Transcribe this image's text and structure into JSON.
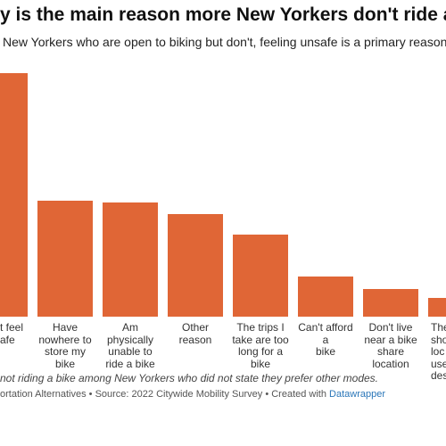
{
  "chart_data": {
    "type": "bar",
    "title": "y is the main reason more New Yorkers don't ride a b",
    "subtitle": "New Yorkers who are open to biking but don't, feeling unsafe is a primary reason for not",
    "categories": [
      "t feel\nafe",
      "Have\nnowhere to\nstore my bike",
      "Am\nphysically\nunable to\nride a bike",
      "Other reason",
      "The trips I\ntake are too\nlong for a\nbike",
      "Can't afford a\nbike",
      "Don't live\nnear a bike\nshare\nlocation",
      "The\nsho\nloc\nuse\ndes"
    ],
    "values": [
      273,
      130,
      128,
      115,
      92,
      45,
      31,
      21
    ],
    "color": "#e06636",
    "note": "not riding a bike among New Yorkers who did not state they prefer other modes.",
    "source": "ortation Alternatives • Source: 2022 Citywide Mobility Survey • Created with",
    "source_link": "Datawrapper"
  }
}
